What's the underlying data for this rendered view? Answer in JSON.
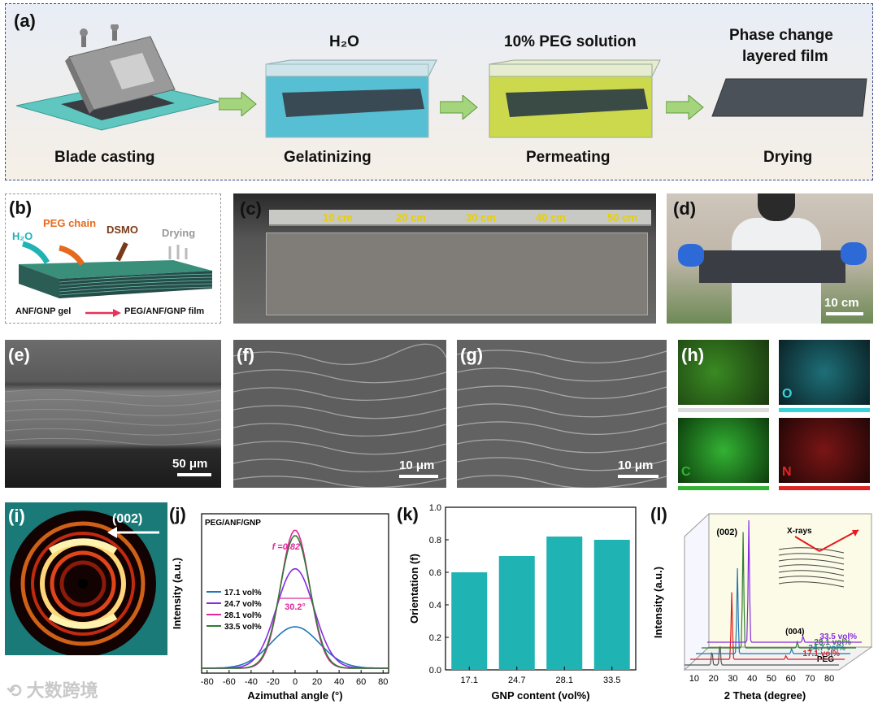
{
  "panels": {
    "a": {
      "label": "(a)",
      "steps": [
        "Blade casting",
        "Gelatinizing",
        "Permeating",
        "Drying"
      ],
      "headers": [
        "H₂O",
        "10% PEG solution",
        "Phase change",
        "layered film"
      ]
    },
    "b": {
      "label": "(b)",
      "h2o": "H₂O",
      "peg_chain": "PEG chain",
      "dsmo": "DSMO",
      "drying": "Drying",
      "from": "ANF/GNP gel",
      "to": "PEG/ANF/GNP film"
    },
    "c": {
      "label": "(c)",
      "ruler": [
        "10 cm",
        "20 cm",
        "30 cm",
        "40 cm",
        "50 cm"
      ]
    },
    "d": {
      "label": "(d)",
      "scale": "10 cm"
    },
    "e": {
      "label": "(e)",
      "scale": "50 μm"
    },
    "f": {
      "label": "(f)",
      "scale": "10 μm"
    },
    "g": {
      "label": "(g)",
      "scale": "10 μm"
    },
    "h": {
      "label": "(h)",
      "elements": [
        "O",
        "C",
        "N"
      ]
    },
    "i": {
      "label": "(i)",
      "peak": "(002)"
    },
    "j": {
      "label": "(j)",
      "title": "PEG/ANF/GNP",
      "f_annot": "f =0.82",
      "fwhm": "30.2°"
    },
    "k": {
      "label": "(k)"
    },
    "l": {
      "label": "(l)",
      "peak002": "(002)",
      "peak004": "(004)",
      "xrays": "X-rays"
    }
  },
  "colors": {
    "teal": "#1fb3b3",
    "s171": "#1f77b4",
    "s247": "#8a2be2",
    "s281": "#e0279b",
    "s335": "#2e7d32",
    "peg_xrd": "#555555",
    "red_xrd": "#e41a1c"
  },
  "chart_data": [
    {
      "id": "j",
      "type": "line",
      "title": "PEG/ANF/GNP",
      "xlabel": "Azimuthal angle (°)",
      "ylabel": "Intensity (a.u.)",
      "xlim": [
        -85,
        85
      ],
      "x_ticks": [
        -80,
        -60,
        -40,
        -20,
        0,
        20,
        40,
        60,
        80
      ],
      "legend": "left",
      "series": [
        {
          "name": "17.1 vol%",
          "color": "#1f77b4",
          "peak": 0.3,
          "sigma": 22
        },
        {
          "name": "24.7 vol%",
          "color": "#8a2be2",
          "peak": 0.72,
          "sigma": 17
        },
        {
          "name": "28.1 vol%",
          "color": "#e0279b",
          "peak": 1.0,
          "sigma": 13
        },
        {
          "name": "33.5 vol%",
          "color": "#2e7d32",
          "peak": 0.96,
          "sigma": 13.5
        }
      ]
    },
    {
      "id": "k",
      "type": "bar",
      "xlabel": "GNP content (vol%)",
      "ylabel": "Orientation (f)",
      "categories": [
        "17.1",
        "24.7",
        "28.1",
        "33.5"
      ],
      "values": [
        0.6,
        0.7,
        0.82,
        0.8
      ],
      "ylim": [
        0,
        1.0
      ],
      "y_ticks": [
        "0.0",
        "0.2",
        "0.4",
        "0.6",
        "0.8",
        "1.0"
      ]
    },
    {
      "id": "l",
      "type": "line",
      "xlabel": "2 Theta (degree)",
      "ylabel": "Intensity (a.u.)",
      "x_ticks": [
        10,
        20,
        30,
        40,
        50,
        60,
        70,
        80
      ],
      "series": [
        {
          "name": "PEG",
          "color": "#555555",
          "peaks": [
            [
              19.2,
              0.12
            ],
            [
              23.3,
              0.18
            ]
          ]
        },
        {
          "name": "17.1 vol%",
          "color": "#e41a1c",
          "peaks": [
            [
              26.5,
              0.55
            ],
            [
              54.6,
              0.03
            ]
          ]
        },
        {
          "name": "24.7 vol%",
          "color": "#1f77b4",
          "peaks": [
            [
              26.5,
              0.7
            ],
            [
              54.6,
              0.04
            ]
          ]
        },
        {
          "name": "28.1 vol%",
          "color": "#2e7d32",
          "peaks": [
            [
              26.5,
              0.95
            ],
            [
              54.6,
              0.05
            ]
          ]
        },
        {
          "name": "33.5 vol%",
          "color": "#8a2be2",
          "peaks": [
            [
              26.5,
              1.0
            ],
            [
              54.6,
              0.05
            ]
          ]
        }
      ]
    }
  ],
  "watermark": "大数跨境"
}
